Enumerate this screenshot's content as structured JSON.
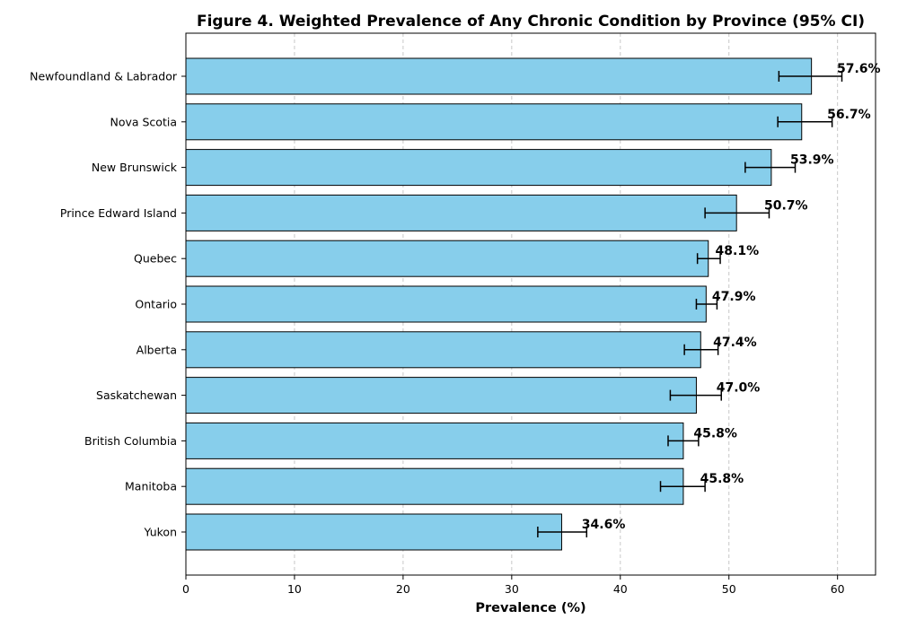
{
  "chart_data": {
    "type": "bar",
    "orientation": "horizontal",
    "title": "Figure 4. Weighted Prevalence of Any Chronic Condition by Province (95% CI)",
    "xlabel": "Prevalence (%)",
    "ylabel": "",
    "xlim": [
      0,
      63.5
    ],
    "xticks": [
      0,
      10,
      20,
      30,
      40,
      50,
      60
    ],
    "grid": "x-dashed",
    "bar_color": "#87CEEB",
    "edge_color": "#000000",
    "categories": [
      "Newfoundland & Labrador",
      "Nova Scotia",
      "New Brunswick",
      "Prince Edward Island",
      "Quebec",
      "Ontario",
      "Alberta",
      "Saskatchewan",
      "British Columbia",
      "Manitoba",
      "Yukon"
    ],
    "values": [
      57.6,
      56.7,
      53.9,
      50.7,
      48.1,
      47.9,
      47.4,
      47.0,
      45.8,
      45.8,
      34.6
    ],
    "ci_low": [
      54.6,
      54.5,
      51.5,
      47.8,
      47.1,
      47.0,
      45.9,
      44.6,
      44.4,
      43.7,
      32.4
    ],
    "ci_high": [
      60.4,
      59.5,
      56.1,
      53.7,
      49.2,
      48.9,
      49.0,
      49.3,
      47.2,
      47.8,
      36.9
    ],
    "labels": [
      "57.6%",
      "56.7%",
      "53.9%",
      "50.7%",
      "48.1%",
      "47.9%",
      "47.4%",
      "47.0%",
      "45.8%",
      "45.8%",
      "34.6%"
    ]
  }
}
